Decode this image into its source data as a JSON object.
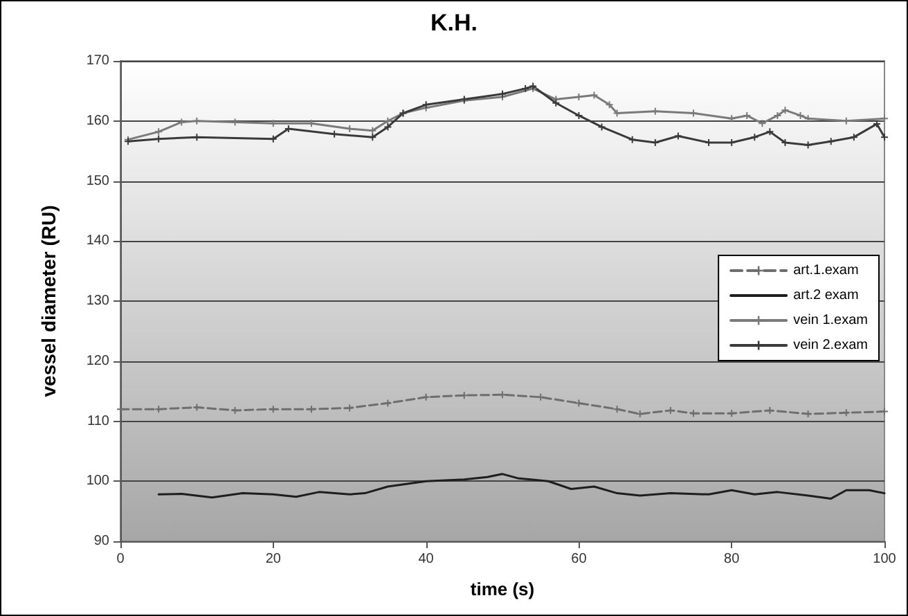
{
  "chart_data": {
    "type": "line",
    "title": "K.H.",
    "xlabel": "time (s)",
    "ylabel": "vessel diameter (RU)",
    "xlim": [
      0,
      100
    ],
    "xticks": [
      0,
      20,
      40,
      60,
      80,
      100
    ],
    "ylim": [
      90,
      170
    ],
    "yticks": [
      90,
      100,
      110,
      120,
      130,
      140,
      150,
      160,
      170
    ],
    "grid": "y",
    "legend": "right",
    "series": [
      {
        "name": "art.1.exam",
        "color": "#6e6e6e",
        "line_style": "dashed",
        "marker": "cross",
        "x": [
          0,
          5,
          10,
          15,
          20,
          25,
          30,
          35,
          40,
          45,
          50,
          55,
          60,
          65,
          68,
          72,
          75,
          80,
          85,
          90,
          95,
          100
        ],
        "values": [
          112,
          112,
          112.3,
          111.8,
          112,
          112,
          112.2,
          113,
          114,
          114.3,
          114.4,
          114,
          113,
          112,
          111.2,
          111.8,
          111.3,
          111.3,
          111.8,
          111.2,
          111.4,
          111.6
        ]
      },
      {
        "name": "art.2 exam",
        "color": "#1e1e1e",
        "line_style": "solid",
        "marker": "none",
        "x": [
          5,
          8,
          12,
          16,
          20,
          23,
          26,
          30,
          32,
          35,
          40,
          45,
          48,
          50,
          52,
          56,
          59,
          62,
          65,
          68,
          72,
          77,
          80,
          83,
          86,
          90,
          93,
          95,
          98,
          100
        ],
        "values": [
          97.8,
          97.9,
          97.3,
          98,
          97.8,
          97.4,
          98.2,
          97.8,
          98,
          99.1,
          100,
          100.3,
          100.7,
          101.2,
          100.5,
          100,
          98.7,
          99.1,
          98,
          97.6,
          98,
          97.8,
          98.5,
          97.8,
          98.2,
          97.6,
          97.1,
          98.5,
          98.5,
          98
        ]
      },
      {
        "name": "vein 1.exam",
        "color": "#7a7a7a",
        "line_style": "solid",
        "marker": "cross",
        "x": [
          1,
          5,
          8,
          10,
          15,
          20,
          25,
          30,
          33,
          35,
          37,
          40,
          45,
          50,
          54,
          57,
          60,
          62,
          64,
          65,
          70,
          75,
          80,
          82,
          84,
          86,
          87,
          89,
          90,
          95,
          100
        ],
        "values": [
          156.9,
          158.2,
          159.8,
          160,
          159.8,
          159.6,
          159.6,
          158.7,
          158.4,
          160,
          161.3,
          162.2,
          163.4,
          164,
          165.4,
          163.6,
          164,
          164.3,
          162.7,
          161.3,
          161.6,
          161.3,
          160.4,
          160.9,
          159.6,
          160.9,
          161.8,
          160.9,
          160.4,
          160,
          160.4
        ]
      },
      {
        "name": "vein 2.exam",
        "color": "#3a3a3a",
        "line_style": "solid",
        "marker": "cross",
        "x": [
          1,
          5,
          10,
          20,
          22,
          28,
          33,
          35,
          37,
          40,
          45,
          50,
          53,
          54,
          57,
          60,
          63,
          67,
          70,
          73,
          77,
          80,
          83,
          85,
          87,
          90,
          93,
          96,
          99,
          100
        ],
        "values": [
          156.6,
          157,
          157.3,
          157,
          158.7,
          157.8,
          157.3,
          159,
          161.3,
          162.7,
          163.6,
          164.5,
          165.4,
          165.8,
          163,
          160.9,
          159,
          156.9,
          156.4,
          157.5,
          156.4,
          156.4,
          157.3,
          158.2,
          156.4,
          156,
          156.6,
          157.3,
          159.5,
          157.3
        ]
      }
    ]
  }
}
